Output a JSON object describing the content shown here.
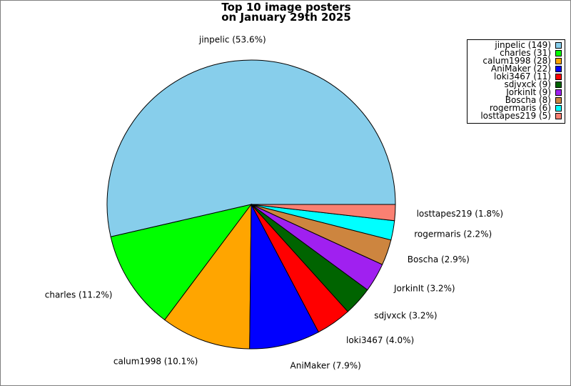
{
  "chart_data": {
    "type": "pie",
    "title": [
      "Top 10 image posters",
      "on January 29th 2025"
    ],
    "slices": [
      {
        "name": "jinpelic",
        "value": 149,
        "percent_label": "jinpelic (53.6%)",
        "legend_label": "jinpelic (149)",
        "color": "#87ceeb"
      },
      {
        "name": "charles",
        "value": 31,
        "percent_label": "charles (11.2%)",
        "legend_label": "charles (31)",
        "color": "#00ff00"
      },
      {
        "name": "calum1998",
        "value": 28,
        "percent_label": "calum1998 (10.1%)",
        "legend_label": "calum1998 (28)",
        "color": "#ffa500"
      },
      {
        "name": "AniMaker",
        "value": 22,
        "percent_label": "AniMaker (7.9%)",
        "legend_label": "AniMaker (22)",
        "color": "#0000ff"
      },
      {
        "name": "loki3467",
        "value": 11,
        "percent_label": "loki3467 (4.0%)",
        "legend_label": "loki3467 (11)",
        "color": "#ff0000"
      },
      {
        "name": "sdjvxck",
        "value": 9,
        "percent_label": "sdjvxck (3.2%)",
        "legend_label": "sdjvxck (9)",
        "color": "#006400"
      },
      {
        "name": "JorkinIt",
        "value": 9,
        "percent_label": "JorkinIt (3.2%)",
        "legend_label": "JorkinIt (9)",
        "color": "#a020f0"
      },
      {
        "name": "Boscha",
        "value": 8,
        "percent_label": "Boscha (2.9%)",
        "legend_label": "Boscha (8)",
        "color": "#cd853f"
      },
      {
        "name": "rogermaris",
        "value": 6,
        "percent_label": "rogermaris (2.2%)",
        "legend_label": "rogermaris (6)",
        "color": "#00ffff"
      },
      {
        "name": "losttapes219",
        "value": 5,
        "percent_label": "losttapes219 (1.8%)",
        "legend_label": "losttapes219 (5)",
        "color": "#fa8072"
      }
    ],
    "legend_position": "top-right",
    "start_angle": "3 o'clock",
    "direction": "counter-clockwise"
  }
}
